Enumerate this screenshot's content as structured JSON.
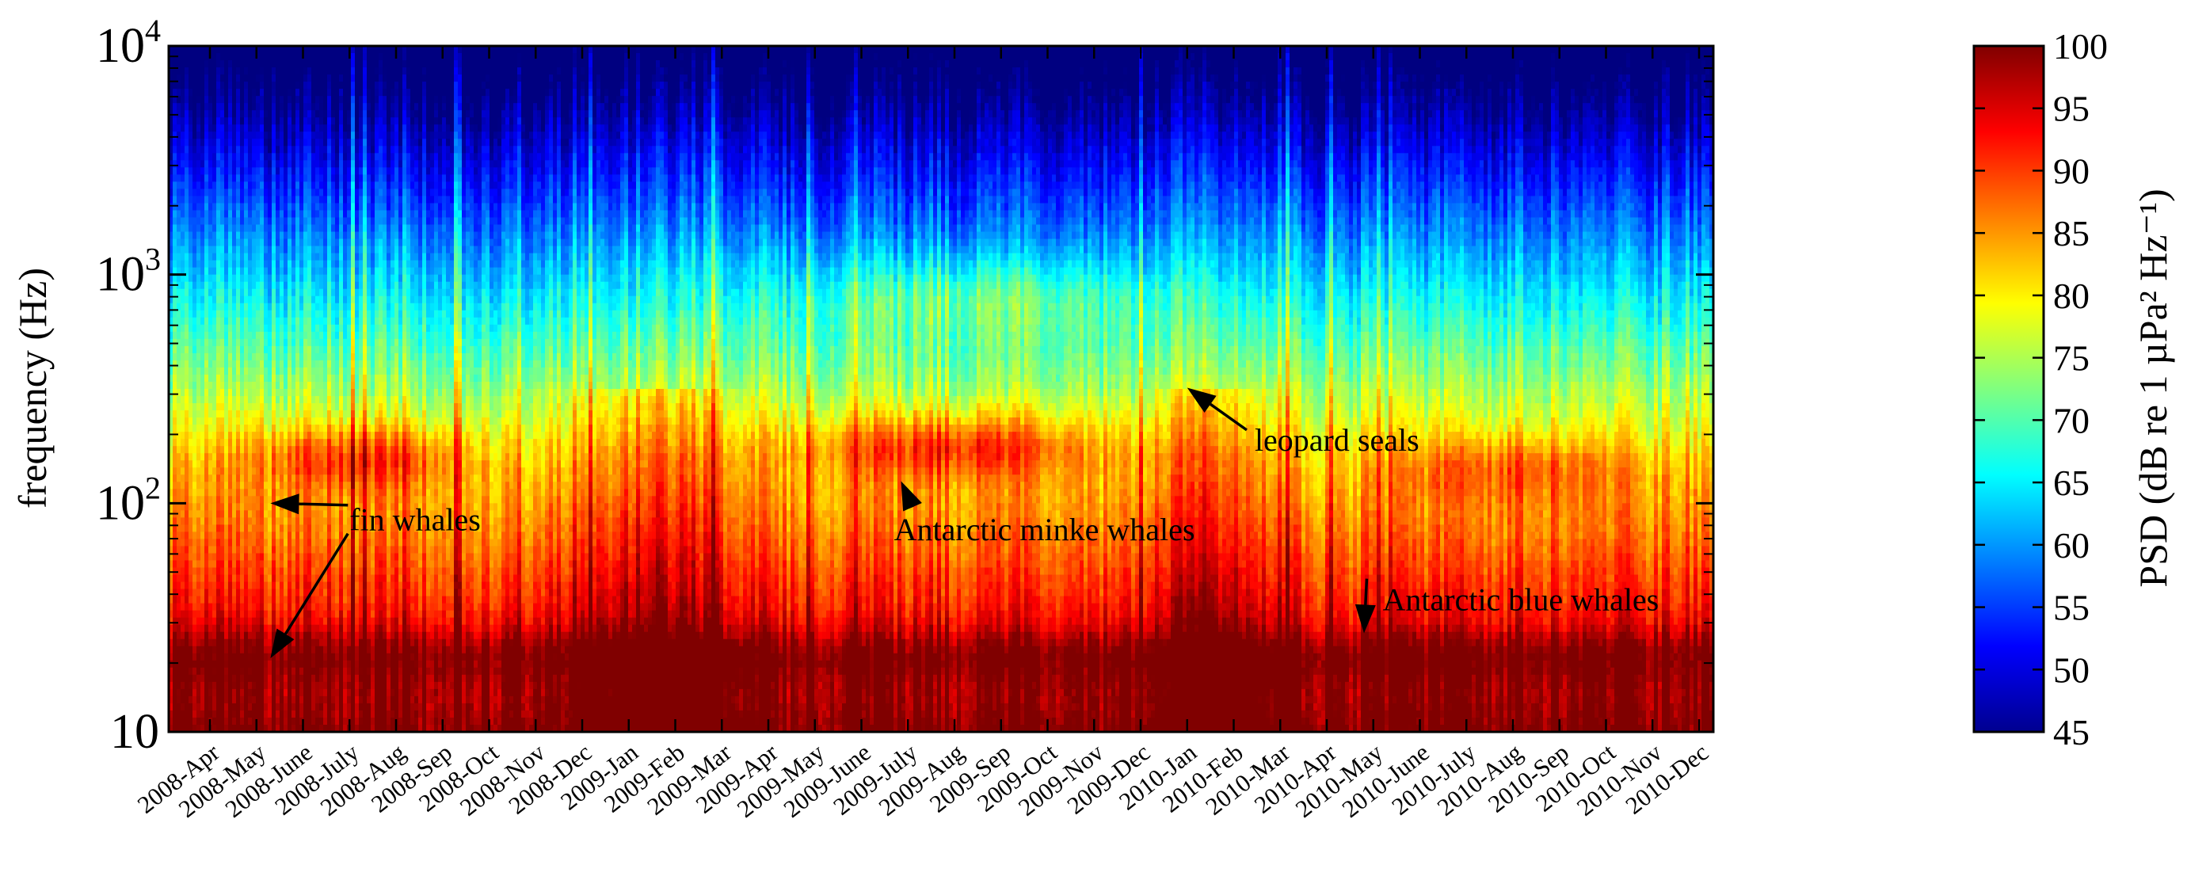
{
  "chart_data": {
    "type": "heatmap",
    "title": "",
    "xlabel": "",
    "ylabel": "frequency (Hz)",
    "y_scale": "log",
    "ylim": [
      10,
      10000
    ],
    "y_tick_labels": [
      "10",
      "10^2",
      "10^3",
      "10^4"
    ],
    "x_tick_labels": [
      "2008-Apr",
      "2008-May",
      "2008-June",
      "2008-July",
      "2008-Aug",
      "2008-Sep",
      "2008-Oct",
      "2008-Nov",
      "2008-Dec",
      "2009-Jan",
      "2009-Feb",
      "2009-Mar",
      "2009-Apr",
      "2009-May",
      "2009-June",
      "2009-July",
      "2009-Aug",
      "2009-Sep",
      "2009-Oct",
      "2009-Nov",
      "2009-Dec",
      "2010-Jan",
      "2010-Feb",
      "2010-Mar",
      "2010-Apr",
      "2010-May",
      "2010-June",
      "2010-July",
      "2010-Aug",
      "2010-Sep",
      "2010-Oct",
      "2010-Nov",
      "2010-Dec"
    ],
    "colorbar": {
      "label": "PSD (dB re 1 µPa² Hz⁻¹)",
      "range": [
        45,
        100
      ],
      "ticks": [
        "100",
        "95",
        "90",
        "85",
        "80",
        "75",
        "70",
        "65",
        "60",
        "55",
        "50",
        "45"
      ],
      "colormap": "jet"
    },
    "signals": [
      {
        "label": "fin whales",
        "frequencies_hz": [
          20,
          100
        ]
      },
      {
        "label": "Antarctic minke whales",
        "frequencies_hz": [
          100,
          300
        ]
      },
      {
        "label": "leopard seals",
        "frequencies_hz": [
          350
        ]
      },
      {
        "label": "Antarctic blue whales",
        "frequencies_hz": [
          27
        ]
      }
    ],
    "annotations": [
      {
        "text": "fin whales",
        "text_freq_hz": 85,
        "text_month_index": 3.0,
        "arrow_targets": [
          {
            "freq_hz": 100,
            "month_index": 1.3
          },
          {
            "freq_hz": 21,
            "month_index": 1.3
          }
        ]
      },
      {
        "text": "Antarctic minke whales",
        "text_freq_hz": 77,
        "text_month_index": 14.7,
        "arrow_targets": [
          {
            "freq_hz": 125,
            "month_index": 14.85
          }
        ]
      },
      {
        "text": "leopard seals",
        "text_freq_hz": 190,
        "text_month_index": 22.45,
        "arrow_targets": [
          {
            "freq_hz": 320,
            "month_index": 21.0
          }
        ]
      },
      {
        "text": "Antarctic blue whales",
        "text_freq_hz": 38,
        "text_month_index": 25.2,
        "arrow_targets": [
          {
            "freq_hz": 27,
            "month_index": 24.8
          }
        ]
      }
    ]
  }
}
